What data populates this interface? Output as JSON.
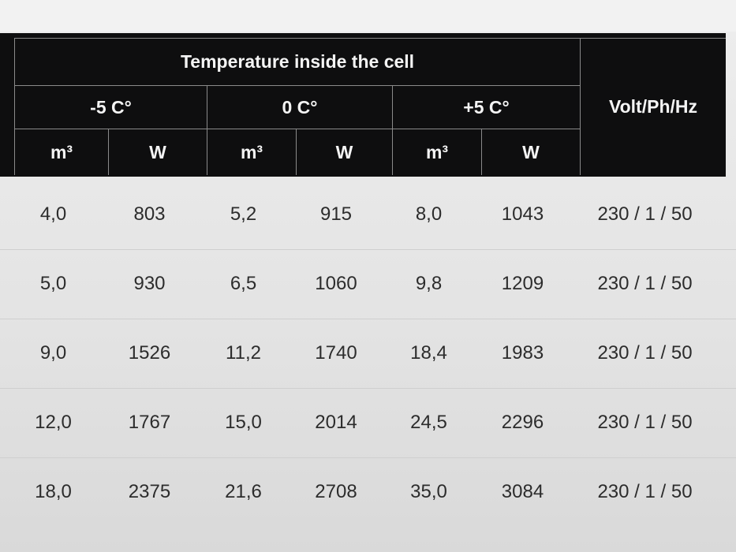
{
  "table": {
    "title": "Temperature inside the cell",
    "groups": [
      "-5 C°",
      "0 C°",
      "+5 C°"
    ],
    "power_header": "Volt/Ph/Hz",
    "subheaders": [
      "m³",
      "W",
      "m³",
      "W",
      "m³",
      "W"
    ],
    "rows": [
      [
        "4,0",
        "803",
        "5,2",
        "915",
        "8,0",
        "1043",
        "230 / 1 / 50"
      ],
      [
        "5,0",
        "930",
        "6,5",
        "1060",
        "9,8",
        "1209",
        "230 / 1 / 50"
      ],
      [
        "9,0",
        "1526",
        "11,2",
        "1740",
        "18,4",
        "1983",
        "230 / 1 / 50"
      ],
      [
        "12,0",
        "1767",
        "15,0",
        "2014",
        "24,5",
        "2296",
        "230 / 1 / 50"
      ],
      [
        "18,0",
        "2375",
        "21,6",
        "2708",
        "35,0",
        "3084",
        "230 / 1 / 50"
      ]
    ]
  }
}
